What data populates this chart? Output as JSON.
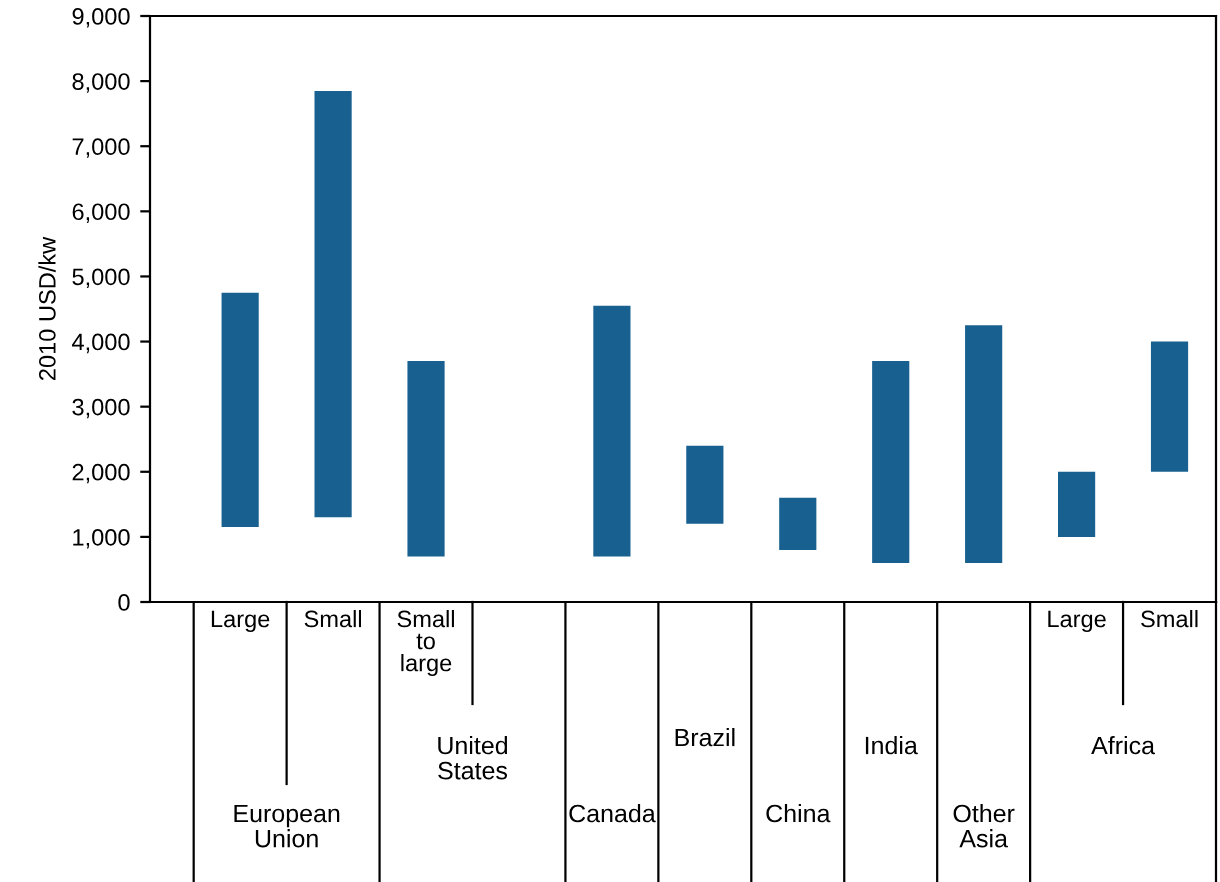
{
  "chart_data": {
    "type": "bar",
    "ylabel": "2010 USD/kw",
    "categories": [
      "Large",
      "Small",
      "Small to large",
      null,
      null,
      null,
      null,
      null,
      null,
      "Large",
      "Small"
    ],
    "base": [
      1150,
      1300,
      700,
      null,
      700,
      1200,
      800,
      600,
      600,
      1000,
      2000
    ],
    "values": [
      3600,
      6550,
      3000,
      null,
      3850,
      1200,
      800,
      3100,
      3650,
      1000,
      2000
    ],
    "color": "#17608f",
    "annotations": [
      "European Union",
      "United States",
      "Canada",
      "Brazil",
      "China",
      "India",
      "Other Asia",
      "Africa"
    ],
    "ylim": [
      0,
      9000
    ],
    "yticks": [
      0,
      {
        "value": 1000,
        "label": "1,000"
      },
      {
        "value": 2000,
        "label": "2,000"
      },
      {
        "value": 3000,
        "label": "3,000"
      },
      {
        "value": 4000,
        "label": "4,000"
      },
      {
        "value": 5000,
        "label": "5,000"
      },
      {
        "value": 6000,
        "label": "6,000"
      },
      {
        "value": 7000,
        "label": "7,000"
      },
      {
        "value": 8000,
        "label": "8,000"
      },
      {
        "value": 9000,
        "label": "9,000"
      }
    ],
    "grid": false
  }
}
